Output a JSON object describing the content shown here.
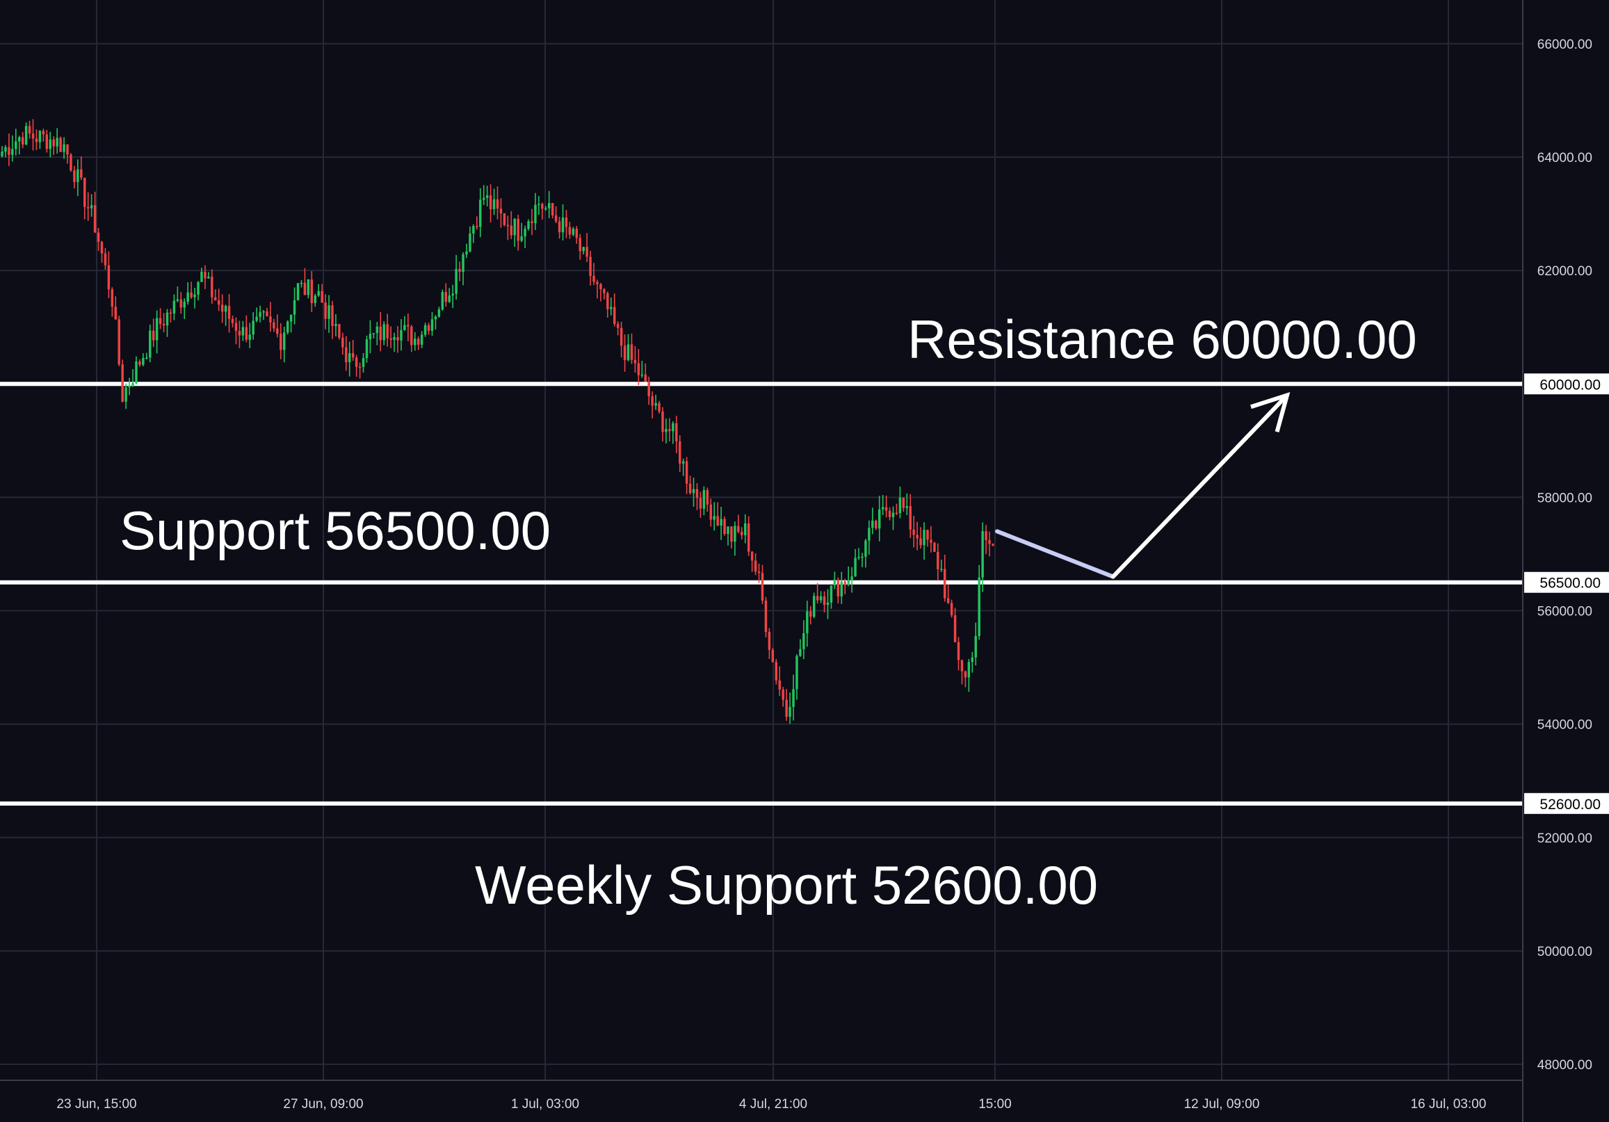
{
  "chart_data": {
    "type": "candlestick",
    "instrument": "",
    "y_ticks": [
      "66000.00",
      "64000.00",
      "62000.00",
      "60000.00",
      "58000.00",
      "56500.00",
      "56000.00",
      "54000.00",
      "52600.00",
      "52000.00",
      "50000.00",
      "48000.00"
    ],
    "y_tick_values": [
      66000,
      64000,
      62000,
      60000,
      58000,
      56500,
      56000,
      54000,
      52600,
      52000,
      50000,
      48000
    ],
    "x_ticks": [
      "23 Jun, 15:00",
      "27 Jun, 09:00",
      "1 Jul, 03:00",
      "4 Jul, 21:00",
      "15:00",
      "12 Jul, 09:00",
      "16 Jul, 03:00"
    ],
    "ylim": [
      47000,
      66800
    ],
    "grid": true,
    "levels": [
      {
        "name": "Resistance",
        "value": 60000,
        "tag": "60000.00",
        "label": "Resistance 60000.00"
      },
      {
        "name": "Support",
        "value": 56500,
        "tag": "56500.00",
        "label": "Support 56500.00"
      },
      {
        "name": "Weekly Support",
        "value": 52600,
        "tag": "52600.00",
        "label": "Weekly Support 52600.00"
      }
    ],
    "projection": [
      {
        "bar": 0,
        "price": 57400
      },
      {
        "bar": 12,
        "price": 56600
      },
      {
        "bar": 30,
        "price": 59800
      }
    ],
    "colors": {
      "background": "#0c0d17",
      "up": "#22c55e",
      "down": "#ef4444",
      "grid": "#252836",
      "level": "#ffffff",
      "projection_first": "#c8cdf5",
      "projection_second": "#ffffff"
    },
    "candles_close_anchors": [
      [
        0,
        64100
      ],
      [
        6,
        64400
      ],
      [
        15,
        64300
      ],
      [
        18,
        64200
      ],
      [
        22,
        63600
      ],
      [
        27,
        62800
      ],
      [
        32,
        61500
      ],
      [
        35,
        59800
      ],
      [
        40,
        60400
      ],
      [
        45,
        61000
      ],
      [
        52,
        61500
      ],
      [
        58,
        61900
      ],
      [
        64,
        61300
      ],
      [
        70,
        60900
      ],
      [
        76,
        61100
      ],
      [
        81,
        60800
      ],
      [
        86,
        61700
      ],
      [
        92,
        61600
      ],
      [
        97,
        60900
      ],
      [
        102,
        60300
      ],
      [
        107,
        60800
      ],
      [
        114,
        61000
      ],
      [
        120,
        60800
      ],
      [
        125,
        61200
      ],
      [
        131,
        61800
      ],
      [
        135,
        62500
      ],
      [
        140,
        63300
      ],
      [
        144,
        63000
      ],
      [
        150,
        62700
      ],
      [
        156,
        63200
      ],
      [
        161,
        62900
      ],
      [
        167,
        62500
      ],
      [
        172,
        61800
      ],
      [
        176,
        61300
      ],
      [
        180,
        60700
      ],
      [
        185,
        60200
      ],
      [
        190,
        59500
      ],
      [
        195,
        59100
      ],
      [
        200,
        58200
      ],
      [
        206,
        57800
      ],
      [
        212,
        57300
      ],
      [
        216,
        57400
      ],
      [
        220,
        56500
      ],
      [
        224,
        55100
      ],
      [
        228,
        54200
      ],
      [
        231,
        55100
      ],
      [
        236,
        56300
      ],
      [
        240,
        56300
      ],
      [
        246,
        56600
      ],
      [
        252,
        57300
      ],
      [
        257,
        57800
      ],
      [
        261,
        57900
      ],
      [
        265,
        57400
      ],
      [
        269,
        57200
      ],
      [
        273,
        56700
      ],
      [
        277,
        55400
      ],
      [
        280,
        54800
      ],
      [
        283,
        55600
      ],
      [
        285,
        57300
      ],
      [
        288,
        57100
      ]
    ]
  }
}
